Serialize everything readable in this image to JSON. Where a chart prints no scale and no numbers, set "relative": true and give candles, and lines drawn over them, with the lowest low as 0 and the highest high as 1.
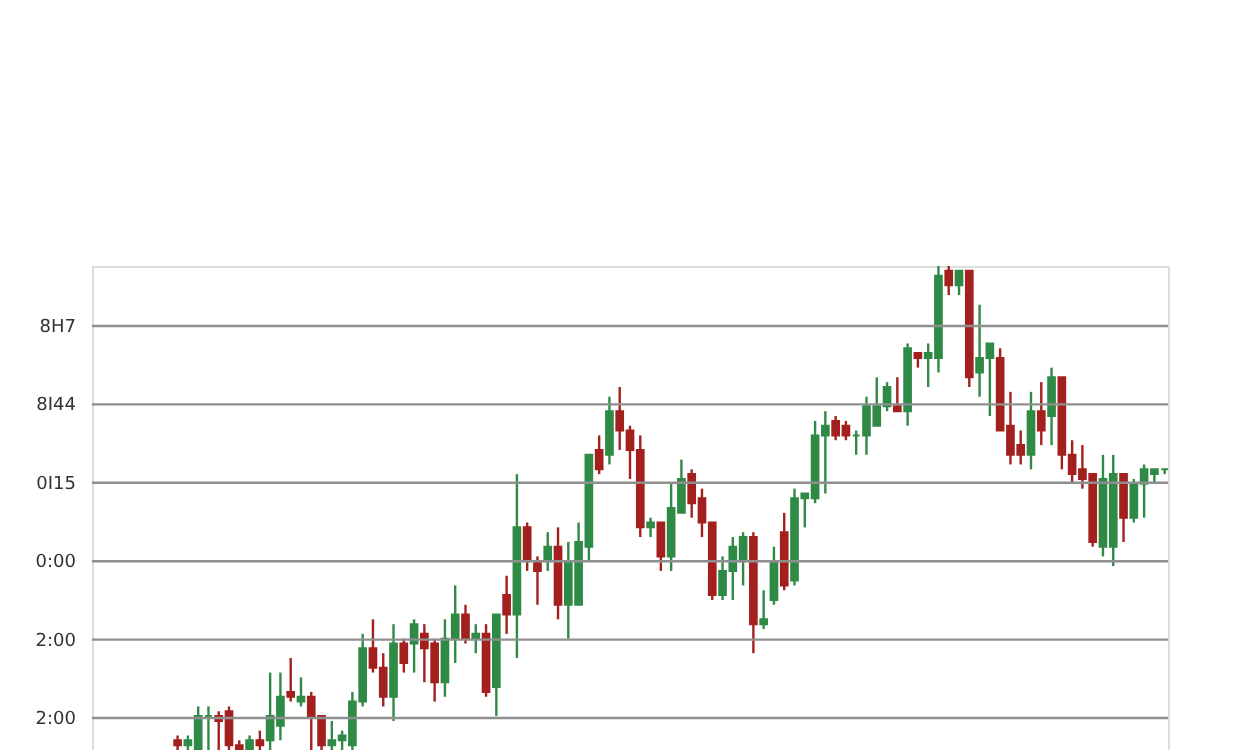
{
  "chart_data": {
    "type": "candlestick",
    "relative": true,
    "categories": [
      null,
      null,
      null,
      null,
      null,
      null,
      null,
      null,
      null,
      null,
      null,
      null,
      null,
      null,
      null,
      null,
      null,
      null,
      null,
      null,
      null,
      null,
      null,
      null,
      null,
      null,
      null,
      null,
      null,
      null,
      null,
      null,
      null,
      null,
      null,
      null,
      null,
      null,
      null,
      null,
      null,
      null,
      null,
      null,
      null,
      null,
      null,
      null,
      null,
      null,
      null,
      null,
      null,
      null,
      null,
      null,
      null,
      null,
      null,
      null,
      null,
      null,
      null,
      null,
      null,
      null,
      null,
      null,
      null,
      null,
      null,
      null,
      null,
      null,
      null,
      null,
      null,
      null,
      null,
      null,
      null,
      null,
      null,
      null,
      null,
      null,
      null,
      null,
      null,
      null,
      null,
      null,
      null,
      null,
      null,
      null,
      null,
      null,
      null,
      null,
      null,
      null,
      null,
      null,
      null
    ],
    "ohlc": [
      null,
      null,
      null,
      null,
      null,
      null,
      null,
      null,
      [
        0.02,
        0.03,
        0,
        0.01
      ],
      [
        0.01,
        0.03,
        0,
        0.02
      ],
      [
        0,
        0.09,
        0,
        0.07
      ],
      [
        0.07,
        0.09,
        0,
        0.07
      ],
      [
        0.07,
        0.08,
        0,
        0.06
      ],
      [
        0.08,
        0.09,
        0,
        0.01
      ],
      [
        0.01,
        0.02,
        0,
        0
      ],
      [
        0,
        0.03,
        0,
        0.02
      ],
      [
        0.02,
        0.04,
        0,
        0.01
      ],
      [
        0.02,
        0.16,
        0,
        0.07
      ],
      [
        0.05,
        0.16,
        0.02,
        0.11
      ],
      [
        0.12,
        0.19,
        0.1,
        0.11
      ],
      [
        0.1,
        0.15,
        0.09,
        0.11
      ],
      [
        0.11,
        0.12,
        0,
        0.07
      ],
      [
        0.07,
        0.07,
        0,
        0.01
      ],
      [
        0.01,
        0.06,
        0,
        0.02
      ],
      [
        0.02,
        0.04,
        0,
        0.03
      ],
      [
        0.01,
        0.12,
        0,
        0.1
      ],
      [
        0.1,
        0.24,
        0.09,
        0.21
      ],
      [
        0.21,
        0.27,
        0.16,
        0.17
      ],
      [
        0.17,
        0.2,
        0.09,
        0.11
      ],
      [
        0.11,
        0.26,
        0.06,
        0.22
      ],
      [
        0.22,
        0.23,
        0.16,
        0.18
      ],
      [
        0.22,
        0.27,
        0.16,
        0.26
      ],
      [
        0.24,
        0.26,
        0.14,
        0.21
      ],
      [
        0.22,
        0.23,
        0.1,
        0.14
      ],
      [
        0.14,
        0.27,
        0.11,
        0.23
      ],
      [
        0.23,
        0.34,
        0.18,
        0.28
      ],
      [
        0.28,
        0.3,
        0.22,
        0.23
      ],
      [
        0.23,
        0.26,
        0.2,
        0.24
      ],
      [
        0.24,
        0.26,
        0.11,
        0.12
      ],
      [
        0.13,
        0.28,
        0.07,
        0.28
      ],
      [
        0.32,
        0.36,
        0.24,
        0.28
      ],
      [
        0.28,
        0.57,
        0.19,
        0.46
      ],
      [
        0.46,
        0.47,
        0.37,
        0.39
      ],
      [
        0.39,
        0.4,
        0.3,
        0.37
      ],
      [
        0.39,
        0.45,
        0.37,
        0.42
      ],
      [
        0.42,
        0.46,
        0.27,
        0.3
      ],
      [
        0.3,
        0.43,
        0.23,
        0.39
      ],
      [
        0.3,
        0.47,
        0.3,
        0.43
      ],
      [
        0.42,
        0.61,
        0.39,
        0.61
      ],
      [
        0.62,
        0.65,
        0.57,
        0.58
      ],
      [
        0.61,
        0.73,
        0.59,
        0.7
      ],
      [
        0.7,
        0.75,
        0.62,
        0.66
      ],
      [
        0.66,
        0.67,
        0.56,
        0.62
      ],
      [
        0.62,
        0.65,
        0.44,
        0.46
      ],
      [
        0.46,
        0.48,
        0.44,
        0.47
      ],
      [
        0.47,
        0.47,
        0.37,
        0.4
      ],
      [
        0.4,
        0.55,
        0.37,
        0.5
      ],
      [
        0.49,
        0.6,
        0.49,
        0.56
      ],
      [
        0.57,
        0.58,
        0.48,
        0.51
      ],
      [
        0.52,
        0.54,
        0.44,
        0.47
      ],
      [
        0.47,
        0.47,
        0.31,
        0.32
      ],
      [
        0.32,
        0.4,
        0.31,
        0.37
      ],
      [
        0.37,
        0.44,
        0.31,
        0.42
      ],
      [
        0.39,
        0.45,
        0.34,
        0.44
      ],
      [
        0.44,
        0.45,
        0.2,
        0.26
      ],
      [
        0.26,
        0.33,
        0.25,
        0.27
      ],
      [
        0.31,
        0.42,
        0.3,
        0.39
      ],
      [
        0.45,
        0.49,
        0.33,
        0.34
      ],
      [
        0.35,
        0.54,
        0.34,
        0.52
      ],
      [
        0.52,
        0.53,
        0.46,
        0.53
      ],
      [
        0.52,
        0.68,
        0.51,
        0.65
      ],
      [
        0.65,
        0.7,
        0.53,
        0.67
      ],
      [
        0.68,
        0.69,
        0.64,
        0.65
      ],
      [
        0.67,
        0.68,
        0.64,
        0.65
      ],
      [
        0.65,
        0.66,
        0.61,
        0.65
      ],
      [
        0.65,
        0.73,
        0.61,
        0.71
      ],
      [
        0.67,
        0.77,
        0.67,
        0.71
      ],
      [
        0.71,
        0.76,
        0.7,
        0.75
      ],
      [
        0.71,
        0.77,
        0.7,
        0.7
      ],
      [
        0.7,
        0.84,
        0.67,
        0.83
      ],
      [
        0.82,
        0.82,
        0.79,
        0.81
      ],
      [
        0.81,
        0.84,
        0.75,
        0.82
      ],
      [
        0.81,
        1,
        0.78,
        0.98
      ],
      [
        0.99,
        1,
        0.94,
        0.96
      ],
      [
        0.96,
        0.99,
        0.94,
        0.99
      ],
      [
        0.99,
        0.99,
        0.75,
        0.77
      ],
      [
        0.78,
        0.92,
        0.73,
        0.81
      ],
      [
        0.81,
        0.84,
        0.69,
        0.84
      ],
      [
        0.81,
        0.83,
        0.66,
        0.66
      ],
      [
        0.67,
        0.74,
        0.59,
        0.61
      ],
      [
        0.63,
        0.66,
        0.59,
        0.61
      ],
      [
        0.61,
        0.74,
        0.58,
        0.7
      ],
      [
        0.7,
        0.76,
        0.63,
        0.66
      ],
      [
        0.69,
        0.79,
        0.63,
        0.77
      ],
      [
        0.77,
        0.77,
        0.58,
        0.61
      ],
      [
        0.61,
        0.64,
        0.55,
        0.57
      ],
      [
        0.58,
        0.63,
        0.54,
        0.56
      ],
      [
        0.57,
        0.57,
        0.42,
        0.43
      ],
      [
        0.42,
        0.61,
        0.4,
        0.56
      ],
      [
        0.42,
        0.61,
        0.38,
        0.57
      ],
      [
        0.57,
        0.57,
        0.43,
        0.48
      ],
      [
        0.48,
        0.56,
        0.47,
        0.55
      ],
      [
        0.55,
        0.59,
        0.48,
        0.58
      ],
      [
        0.57,
        0.58,
        0.55,
        0.58
      ],
      [
        0.58,
        0.58,
        0.57,
        0.58
      ]
    ],
    "colors": [
      null,
      null,
      null,
      null,
      null,
      null,
      null,
      null,
      "#a3201f",
      "#2f8a46",
      "#2f8a46",
      "#2f8a46",
      "#a3201f",
      "#a3201f",
      "#a3201f",
      "#2f8a46",
      "#a3201f",
      "#2f8a46",
      "#2f8a46",
      "#a3201f",
      "#2f8a46",
      "#a3201f",
      "#a3201f",
      "#2f8a46",
      "#2f8a46",
      "#2f8a46",
      "#2f8a46",
      "#a3201f",
      "#a3201f",
      "#2f8a46",
      "#a3201f",
      "#2f8a46",
      "#a3201f",
      "#a3201f",
      "#2f8a46",
      "#2f8a46",
      "#a3201f",
      "#2f8a46",
      "#a3201f",
      "#2f8a46",
      "#a3201f",
      "#2f8a46",
      "#a3201f",
      "#a3201f",
      "#2f8a46",
      "#a3201f",
      "#2f8a46",
      "#2f8a46",
      "#2f8a46",
      "#a3201f",
      "#2f8a46",
      "#a3201f",
      "#a3201f",
      "#a3201f",
      "#2f8a46",
      "#a3201f",
      "#2f8a46",
      "#2f8a46",
      "#a3201f",
      "#a3201f",
      "#a3201f",
      "#2f8a46",
      "#2f8a46",
      "#2f8a46",
      "#a3201f",
      "#2f8a46",
      "#2f8a46",
      "#a3201f",
      "#2f8a46",
      "#2f8a46",
      "#2f8a46",
      "#2f8a46",
      "#a3201f",
      "#a3201f",
      "#2f8a46",
      "#2f8a46",
      "#2f8a46",
      "#2f8a46",
      "#a3201f",
      "#2f8a46",
      "#a3201f",
      "#2f8a46",
      "#2f8a46",
      "#a3201f",
      "#2f8a46",
      "#a3201f",
      "#2f8a46",
      "#2f8a46",
      "#a3201f",
      "#a3201f",
      "#a3201f",
      "#2f8a46",
      "#a3201f",
      "#2f8a46",
      "#a3201f",
      "#a3201f",
      "#a3201f",
      "#a3201f",
      "#2f8a46",
      "#2f8a46",
      "#a3201f",
      "#2f8a46",
      "#2f8a46",
      "#2f8a46",
      "#2f8a46"
    ],
    "annotations": [
      "8H7",
      "8I44",
      "0I15",
      "0:00",
      "2:00",
      "2:00"
    ],
    "grid": "y"
  }
}
